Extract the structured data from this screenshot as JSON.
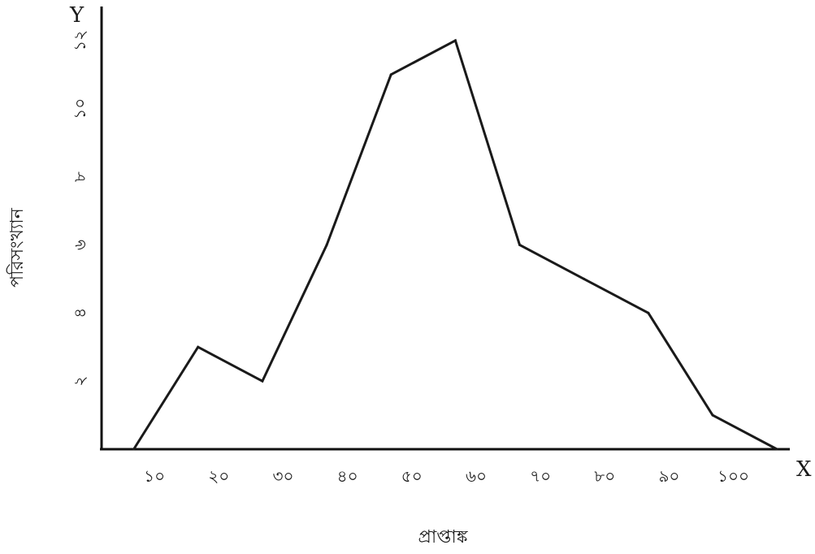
{
  "chart_data": {
    "type": "line",
    "title": "",
    "xlabel": "প্রাপ্তাঙ্ক",
    "ylabel": "পরিসংখ্যান",
    "x_axis_letter": "X",
    "y_axis_letter": "Y",
    "xlim": [
      0,
      107
    ],
    "ylim": [
      0,
      13
    ],
    "x_ticks": [
      {
        "value": 10,
        "label": "১০"
      },
      {
        "value": 20,
        "label": "২০"
      },
      {
        "value": 30,
        "label": "৩০"
      },
      {
        "value": 40,
        "label": "৪০"
      },
      {
        "value": 50,
        "label": "৫০"
      },
      {
        "value": 60,
        "label": "৬০"
      },
      {
        "value": 70,
        "label": "৭০"
      },
      {
        "value": 80,
        "label": "৮০"
      },
      {
        "value": 90,
        "label": "৯০"
      },
      {
        "value": 100,
        "label": "১০০"
      }
    ],
    "y_ticks": [
      {
        "value": 2,
        "label": "২"
      },
      {
        "value": 4,
        "label": "৪"
      },
      {
        "value": 6,
        "label": "৬"
      },
      {
        "value": 8,
        "label": "৮"
      },
      {
        "value": 10,
        "label": "১০"
      },
      {
        "value": 12,
        "label": "১২"
      }
    ],
    "x": [
      5,
      15,
      25,
      35,
      45,
      55,
      65,
      75,
      85,
      95,
      105
    ],
    "values": [
      0,
      3,
      2,
      6,
      11,
      12,
      6,
      5,
      4,
      1,
      0
    ],
    "grid": false,
    "line_color": "#1a1a1a"
  }
}
